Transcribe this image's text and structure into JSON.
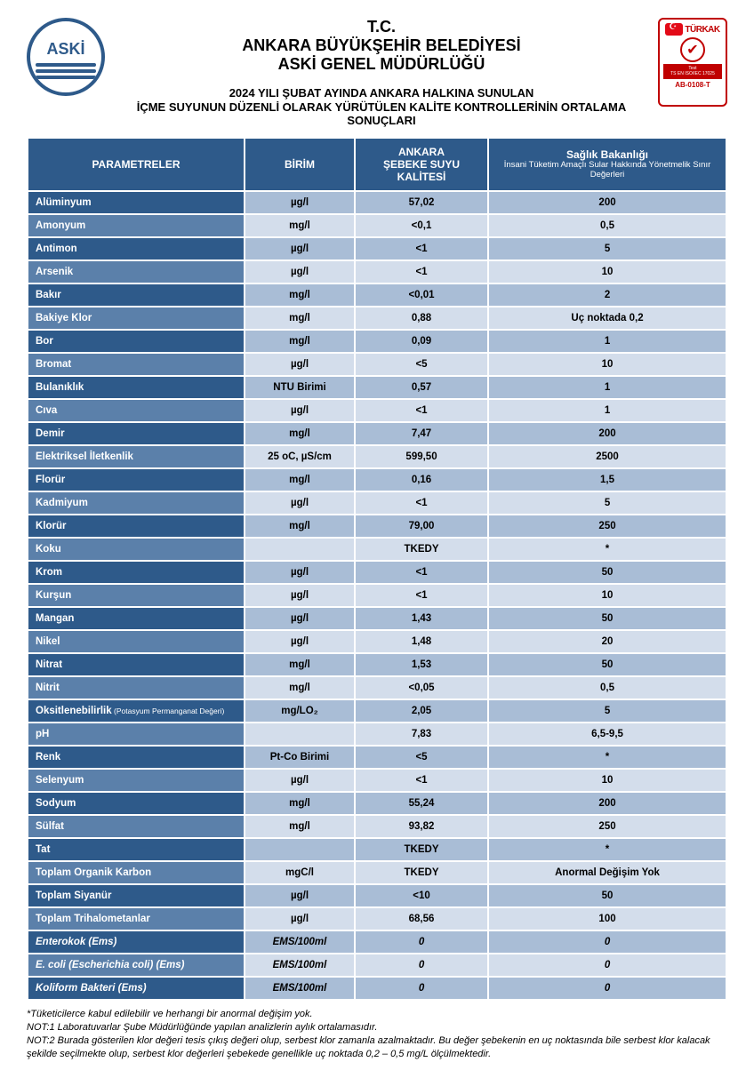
{
  "colors": {
    "header_bg": "#2e5a8a",
    "row_name_odd": "#2e5a8a",
    "row_name_even": "#5b80aa",
    "row_val_odd": "#a9bdd6",
    "row_val_even": "#d3ddeb",
    "white": "#ffffff",
    "turkak_red": "#c00000"
  },
  "logo_left": {
    "text": "ASKİ"
  },
  "logo_right": {
    "brand": "TÜRKAK",
    "check": "✔",
    "band_line1": "Test",
    "band_line2": "TS EN ISO/IEC 17025",
    "code": "AB-0108-T"
  },
  "titles": {
    "l1": "T.C.",
    "l2": "ANKARA BÜYÜKŞEHİR BELEDİYESİ",
    "l3": "ASKİ GENEL MÜDÜRLÜĞÜ",
    "sub1": "2024 YILI ŞUBAT AYINDA ANKARA HALKINA SUNULAN",
    "sub2": "İÇME SUYUNUN DÜZENLİ OLARAK YÜRÜTÜLEN KALİTE KONTROLLERİNİN ORTALAMA SONUÇLARI"
  },
  "table": {
    "headers": {
      "param": "PARAMETRELER",
      "unit": "BİRİM",
      "ankara": "ANKARA\nŞEBEKE SUYU KALİTESİ",
      "limit_main": "Sağlık Bakanlığı",
      "limit_sub": "İnsani Tüketim Amaçlı Sular Hakkında Yönetmelik Sınır Değerleri"
    },
    "rows": [
      {
        "name": "Alüminyum",
        "unit": "µg/l",
        "val": "57,02",
        "lim": "200"
      },
      {
        "name": "Amonyum",
        "unit": "mg/l",
        "val": "<0,1",
        "lim": "0,5"
      },
      {
        "name": "Antimon",
        "unit": "µg/l",
        "val": "<1",
        "lim": "5"
      },
      {
        "name": "Arsenik",
        "unit": "µg/l",
        "val": "<1",
        "lim": "10"
      },
      {
        "name": "Bakır",
        "unit": "mg/l",
        "val": "<0,01",
        "lim": "2"
      },
      {
        "name": "Bakiye Klor",
        "unit": "mg/l",
        "val": "0,88",
        "lim": "Uç noktada 0,2"
      },
      {
        "name": "Bor",
        "unit": "mg/l",
        "val": "0,09",
        "lim": "1"
      },
      {
        "name": "Bromat",
        "unit": "µg/l",
        "val": "<5",
        "lim": "10"
      },
      {
        "name": "Bulanıklık",
        "unit": "NTU Birimi",
        "val": "0,57",
        "lim": "1"
      },
      {
        "name": "Cıva",
        "unit": "µg/l",
        "val": "<1",
        "lim": "1"
      },
      {
        "name": "Demir",
        "unit": "mg/l",
        "val": "7,47",
        "lim": "200"
      },
      {
        "name": "Elektriksel İletkenlik",
        "unit": "25 oC, µS/cm",
        "val": "599,50",
        "lim": "2500"
      },
      {
        "name": "Florür",
        "unit": "mg/l",
        "val": "0,16",
        "lim": "1,5"
      },
      {
        "name": "Kadmiyum",
        "unit": "µg/l",
        "val": "<1",
        "lim": "5"
      },
      {
        "name": "Klorür",
        "unit": "mg/l",
        "val": "79,00",
        "lim": "250"
      },
      {
        "name": "Koku",
        "unit": "",
        "val": "TKEDY",
        "lim": "*"
      },
      {
        "name": "Krom",
        "unit": "µg/l",
        "val": "<1",
        "lim": "50"
      },
      {
        "name": "Kurşun",
        "unit": "µg/l",
        "val": "<1",
        "lim": "10"
      },
      {
        "name": "Mangan",
        "unit": "µg/l",
        "val": "1,43",
        "lim": "50"
      },
      {
        "name": "Nikel",
        "unit": "µg/l",
        "val": "1,48",
        "lim": "20"
      },
      {
        "name": "Nitrat",
        "unit": "mg/l",
        "val": "1,53",
        "lim": "50"
      },
      {
        "name": "Nitrit",
        "unit": "mg/l",
        "val": "<0,05",
        "lim": "0,5"
      },
      {
        "name": "Oksitlenebilirlik",
        "name_sub": "(Potasyum Permanganat Değeri)",
        "unit": "mg/LO₂",
        "val": "2,05",
        "lim": "5"
      },
      {
        "name": "pH",
        "unit": "",
        "val": "7,83",
        "lim": "6,5-9,5"
      },
      {
        "name": "Renk",
        "unit": "Pt-Co Birimi",
        "val": "<5",
        "lim": "*"
      },
      {
        "name": "Selenyum",
        "unit": "µg/l",
        "val": "<1",
        "lim": "10"
      },
      {
        "name": "Sodyum",
        "unit": "mg/l",
        "val": "55,24",
        "lim": "200"
      },
      {
        "name": "Sülfat",
        "unit": "mg/l",
        "val": "93,82",
        "lim": "250"
      },
      {
        "name": "Tat",
        "unit": "",
        "val": "TKEDY",
        "lim": "*"
      },
      {
        "name": "Toplam Organik Karbon",
        "unit": "mgC/l",
        "val": "TKEDY",
        "lim": "Anormal Değişim Yok"
      },
      {
        "name": "Toplam Siyanür",
        "unit": "µg/l",
        "val": "<10",
        "lim": "50"
      },
      {
        "name": "Toplam Trihalometanlar",
        "unit": "µg/l",
        "val": "68,56",
        "lim": "100"
      },
      {
        "name": "Enterokok (Ems)",
        "unit": "EMS/100ml",
        "val": "0",
        "lim": "0",
        "italic": true
      },
      {
        "name": "E. coli (Escherichia coli) (Ems)",
        "unit": "EMS/100ml",
        "val": "0",
        "lim": "0",
        "italic": true
      },
      {
        "name": "Koliform Bakteri (Ems)",
        "unit": "EMS/100ml",
        "val": "0",
        "lim": "0",
        "italic": true
      }
    ]
  },
  "footnotes": {
    "f1": "*Tüketicilerce kabul edilebilir ve herhangi bir anormal değişim yok.",
    "f2": "NOT:1 Laboratuvarlar Şube Müdürlüğünde yapılan analizlerin aylık ortalamasıdır.",
    "f3": "NOT:2 Burada gösterilen klor değeri tesis çıkış değeri olup, serbest klor zamanla azalmaktadır. Bu değer şebekenin en uç noktasında bile serbest klor kalacak şekilde seçilmekte olup, serbest klor değerleri şebekede genellikle uç noktada 0,2 – 0,5 mg/L ölçülmektedir."
  }
}
